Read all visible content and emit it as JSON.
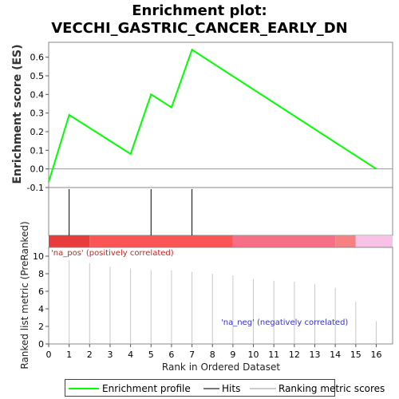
{
  "chart_data": {
    "type": "line",
    "title_line1": "Enrichment plot:",
    "title_line2": "VECCHI_GASTRIC_CANCER_EARLY_DN",
    "es_panel": {
      "ylabel": "Enrichment score (ES)",
      "ylim": [
        -0.1,
        0.68
      ],
      "yticks": [
        "0.6",
        "0.5",
        "0.4",
        "0.3",
        "0.2",
        "0.1",
        "0.0",
        "-0.1"
      ],
      "ytick_values": [
        0.6,
        0.5,
        0.4,
        0.3,
        0.2,
        0.1,
        0.0,
        -0.1
      ],
      "series": [
        {
          "color": "#00ff00",
          "x": [
            0,
            1,
            4,
            5,
            6,
            7,
            16
          ],
          "y": [
            -0.07,
            0.29,
            0.08,
            0.4,
            0.33,
            0.64,
            0.0
          ]
        }
      ]
    },
    "hits": [
      1,
      5,
      7
    ],
    "heat_band": [
      {
        "from": 0,
        "to": 2,
        "color": "#e83b3b"
      },
      {
        "from": 2,
        "to": 9,
        "color": "#fb5555"
      },
      {
        "from": 9,
        "to": 14,
        "color": "#f76f86"
      },
      {
        "from": 14,
        "to": 15,
        "color": "#f88080"
      },
      {
        "from": 15,
        "to": 16.8,
        "color": "#f9c1e6"
      }
    ],
    "metric_panel": {
      "ylabel": "Ranked list metric (PreRanked)",
      "ylim": [
        0,
        11
      ],
      "yticks": [
        "10",
        "8",
        "6",
        "4",
        "2",
        "0"
      ],
      "ytick_values": [
        10,
        8,
        6,
        4,
        2,
        0
      ],
      "x": [
        1,
        2,
        3,
        4,
        5,
        6,
        7,
        8,
        9,
        10,
        11,
        12,
        13,
        14,
        15,
        16
      ],
      "values": [
        9.5,
        9.2,
        8.8,
        8.6,
        8.4,
        8.4,
        8.2,
        8.0,
        7.8,
        7.4,
        7.2,
        7.1,
        6.8,
        6.4,
        4.8,
        2.6
      ],
      "pos_label": "'na_pos' (positively correlated)",
      "neg_label": "'na_neg' (negatively correlated)"
    },
    "xlabel": "Rank in Ordered Dataset",
    "xlim": [
      0,
      16.8
    ],
    "xticks": [
      "0",
      "1",
      "2",
      "3",
      "4",
      "5",
      "6",
      "7",
      "8",
      "9",
      "10",
      "11",
      "12",
      "13",
      "14",
      "15",
      "16"
    ],
    "legend": {
      "entries": [
        "Enrichment profile",
        "Hits",
        "Ranking metric scores"
      ],
      "colors": [
        "#00ff00",
        "#777777",
        "#cccccc"
      ]
    }
  }
}
